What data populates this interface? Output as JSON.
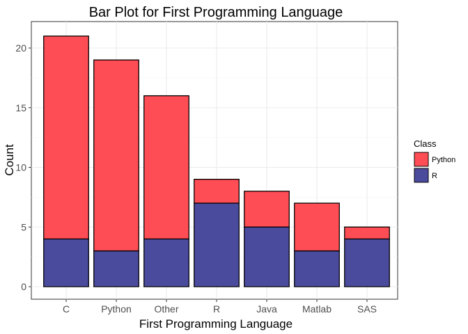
{
  "chart_data": {
    "type": "bar",
    "stacked": true,
    "title": "Bar Plot for First Programming Language",
    "xlabel": "First Programming Language",
    "ylabel": "Count",
    "categories": [
      "C",
      "Python",
      "Other",
      "R",
      "Java",
      "Matlab",
      "SAS"
    ],
    "series": [
      {
        "name": "R",
        "values": [
          4,
          3,
          4,
          7,
          5,
          3,
          4
        ],
        "color": "#4B4B9E"
      },
      {
        "name": "Python",
        "values": [
          17,
          16,
          12,
          2,
          3,
          4,
          1
        ],
        "color": "#FF4D55"
      }
    ],
    "ylim": [
      0,
      21
    ],
    "yticks": [
      "0",
      "5",
      "10",
      "15",
      "20"
    ],
    "grid": true,
    "legend": {
      "title": "Class",
      "placement": "right",
      "items": [
        "Python",
        "R"
      ]
    }
  }
}
